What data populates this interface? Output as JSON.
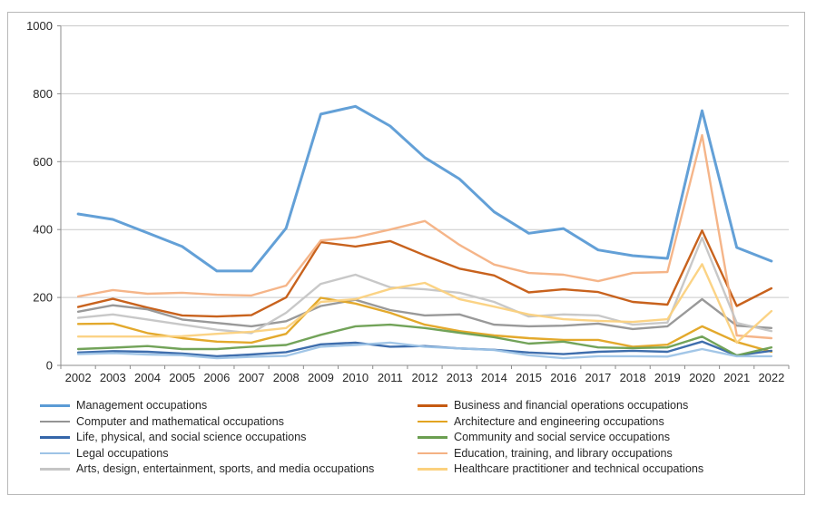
{
  "chart_data": {
    "type": "line",
    "title": "",
    "xlabel": "",
    "ylabel": "",
    "ylim": [
      0,
      1000
    ],
    "y_ticks": [
      0,
      200,
      400,
      600,
      800,
      1000
    ],
    "grid": true,
    "grid_color": "#c9c9c9",
    "axis_color": "#8c8c8c",
    "legend_position": "bottom",
    "legend_columns": 2,
    "categories": [
      "2002",
      "2003",
      "2004",
      "2005",
      "2006",
      "2007",
      "2008",
      "2009",
      "2010",
      "2011",
      "2012",
      "2013",
      "2014",
      "2015",
      "2016",
      "2017",
      "2018",
      "2019",
      "2020",
      "2021",
      "2022"
    ],
    "series": [
      {
        "name": "Management occupations",
        "color": "#5B9BD5",
        "values": [
          446,
          430,
          390,
          350,
          278,
          278,
          404,
          740,
          763,
          705,
          612,
          549,
          452,
          389,
          403,
          340,
          323,
          315,
          750,
          347,
          307
        ]
      },
      {
        "name": "Business and financial operations occupations",
        "color": "#C55A11",
        "values": [
          172,
          196,
          170,
          147,
          144,
          148,
          200,
          363,
          350,
          366,
          324,
          285,
          265,
          215,
          224,
          216,
          187,
          179,
          397,
          175,
          227
        ]
      },
      {
        "name": "Computer and mathematical occupations",
        "color": "#949494",
        "values": [
          158,
          177,
          165,
          135,
          125,
          115,
          130,
          175,
          193,
          163,
          147,
          150,
          120,
          115,
          117,
          123,
          107,
          115,
          195,
          117,
          110
        ]
      },
      {
        "name": "Architecture and engineering occupations",
        "color": "#E2A421",
        "values": [
          122,
          123,
          95,
          80,
          70,
          67,
          93,
          199,
          182,
          155,
          120,
          101,
          88,
          80,
          75,
          75,
          55,
          61,
          115,
          69,
          40
        ]
      },
      {
        "name": "Life, physical, and social science occupations",
        "color": "#3566A9",
        "values": [
          38,
          42,
          40,
          35,
          27,
          32,
          39,
          62,
          67,
          55,
          57,
          50,
          46,
          38,
          33,
          40,
          43,
          40,
          70,
          29,
          43
        ]
      },
      {
        "name": "Community and social service occupations",
        "color": "#6A9E50",
        "values": [
          48,
          52,
          57,
          48,
          48,
          55,
          60,
          90,
          115,
          120,
          110,
          96,
          83,
          64,
          70,
          53,
          51,
          53,
          85,
          29,
          53
        ]
      },
      {
        "name": "Legal occupations",
        "color": "#9DC3E6",
        "values": [
          33,
          36,
          32,
          30,
          21,
          25,
          28,
          55,
          60,
          67,
          55,
          50,
          45,
          30,
          21,
          27,
          27,
          26,
          48,
          27,
          27
        ]
      },
      {
        "name": "Education, training, and library occupations",
        "color": "#F4B183",
        "values": [
          203,
          222,
          211,
          214,
          208,
          206,
          235,
          368,
          377,
          400,
          425,
          355,
          297,
          272,
          267,
          248,
          272,
          275,
          678,
          88,
          80
        ]
      },
      {
        "name": "Arts, design, entertainment, sports, and media occupations",
        "color": "#C5C5C5",
        "values": [
          140,
          150,
          135,
          120,
          105,
          95,
          155,
          240,
          267,
          230,
          224,
          214,
          187,
          144,
          150,
          147,
          120,
          126,
          376,
          125,
          101
        ]
      },
      {
        "name": "Healthcare practitioner and technical occupations",
        "color": "#FBD17E",
        "values": [
          85,
          85,
          85,
          86,
          93,
          99,
          110,
          187,
          195,
          225,
          243,
          195,
          173,
          150,
          136,
          131,
          128,
          136,
          298,
          67,
          160
        ]
      }
    ]
  }
}
